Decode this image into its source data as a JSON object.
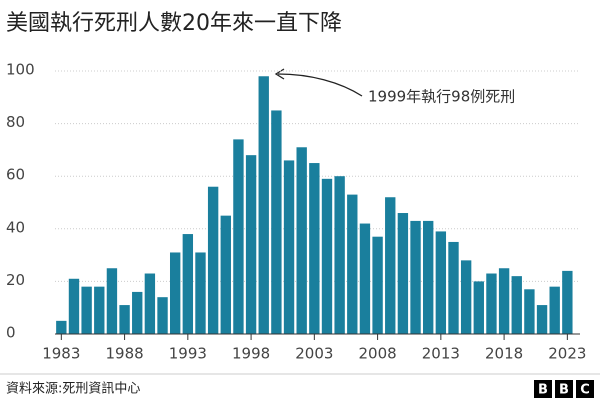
{
  "chart_data": {
    "type": "bar",
    "title": "美國執行死刑人數20年來一直下降",
    "x": [
      1983,
      1984,
      1985,
      1986,
      1987,
      1988,
      1989,
      1990,
      1991,
      1992,
      1993,
      1994,
      1995,
      1996,
      1997,
      1998,
      1999,
      2000,
      2001,
      2002,
      2003,
      2004,
      2005,
      2006,
      2007,
      2008,
      2009,
      2010,
      2011,
      2012,
      2013,
      2014,
      2015,
      2016,
      2017,
      2018,
      2019,
      2020,
      2021,
      2022,
      2023
    ],
    "values": [
      5,
      21,
      18,
      18,
      25,
      11,
      16,
      23,
      14,
      31,
      38,
      31,
      56,
      45,
      74,
      68,
      98,
      85,
      66,
      71,
      65,
      59,
      60,
      53,
      42,
      37,
      52,
      46,
      43,
      43,
      39,
      35,
      28,
      20,
      23,
      25,
      22,
      17,
      11,
      18,
      24
    ],
    "color": "#1a7f9d",
    "xlim": [
      1982.5,
      2024
    ],
    "xticks": [
      1983,
      1988,
      1993,
      1998,
      2003,
      2008,
      2013,
      2018,
      2023
    ],
    "ylim": [
      0,
      100
    ],
    "yticks": [
      0,
      20,
      40,
      60,
      80,
      100
    ],
    "grid": true,
    "annotation": "1999年執行98例死刑",
    "source": "資料來源:死刑資訊中心",
    "logo": [
      "B",
      "B",
      "C"
    ]
  }
}
